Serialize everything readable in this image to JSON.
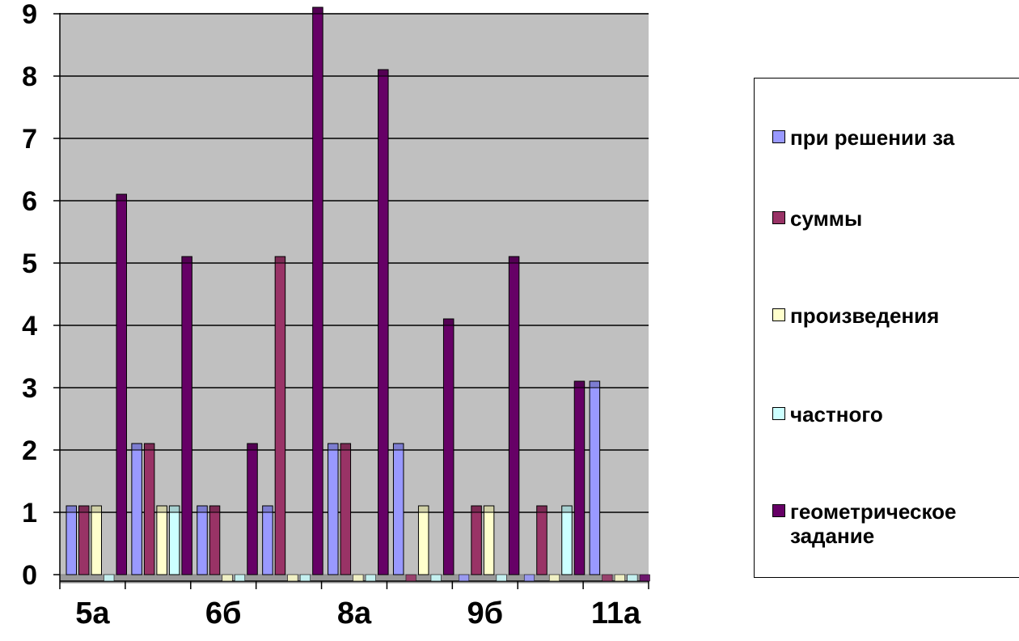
{
  "chart_data": {
    "type": "bar",
    "style": "3d-clustered-column",
    "x_labels": [
      "5а",
      "6б",
      "8а",
      "9б",
      "11а"
    ],
    "groups": 9,
    "yticks": [
      "0",
      "1",
      "2",
      "3",
      "4",
      "5",
      "6",
      "7",
      "8",
      "9"
    ],
    "ylim": [
      0,
      9
    ],
    "grid": true,
    "legend_position": "right",
    "series": [
      {
        "name": "при решении за",
        "color": "#9999FF",
        "values": [
          1,
          2,
          1,
          1,
          2,
          2,
          0,
          0,
          3
        ]
      },
      {
        "name": "суммы",
        "color": "#993366",
        "values": [
          1,
          2,
          1,
          5,
          2,
          0,
          1,
          1,
          0
        ]
      },
      {
        "name": "произведения",
        "color": "#FFFFCC",
        "values": [
          1,
          1,
          0,
          0,
          0,
          1,
          1,
          0,
          0
        ]
      },
      {
        "name": "частного",
        "color": "#CCFFFF",
        "values": [
          0,
          1,
          0,
          0,
          0,
          0,
          0,
          1,
          0
        ]
      },
      {
        "name": "геометрическое\nзадание",
        "color": "#660066",
        "values": [
          6,
          5,
          2,
          9,
          8,
          4,
          5,
          3,
          0
        ]
      }
    ]
  }
}
